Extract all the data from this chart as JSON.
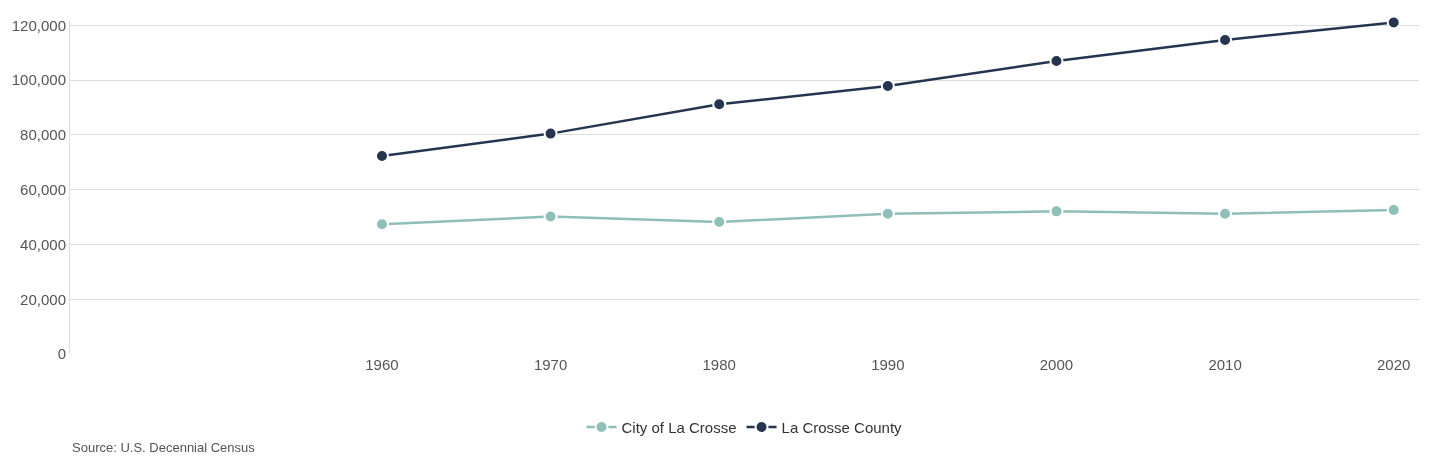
{
  "chart_data": {
    "type": "line",
    "categories": [
      "1960",
      "1970",
      "1980",
      "1990",
      "2000",
      "2010",
      "2020"
    ],
    "series": [
      {
        "name": "City of La Crosse",
        "color": "#8fbfb9",
        "values": [
          47400,
          50200,
          48200,
          51200,
          52100,
          51200,
          52600
        ]
      },
      {
        "name": "La Crosse County",
        "color": "#253550",
        "values": [
          72300,
          80500,
          91200,
          97900,
          107000,
          114700,
          121100
        ]
      }
    ],
    "ylim": [
      0,
      122000
    ],
    "yticks": [
      {
        "value": 0,
        "label": "0"
      },
      {
        "value": 20000,
        "label": "20,000"
      },
      {
        "value": 40000,
        "label": "40,000"
      },
      {
        "value": 60000,
        "label": "60,000"
      },
      {
        "value": 80000,
        "label": "80,000"
      },
      {
        "value": 100000,
        "label": "100,000"
      },
      {
        "value": 120000,
        "label": "120,000"
      }
    ],
    "grid": "y",
    "legend": "bottom",
    "marker": "circle",
    "line_style": "solid",
    "annotations": [
      "Source: U.S. Decennial Census"
    ]
  }
}
